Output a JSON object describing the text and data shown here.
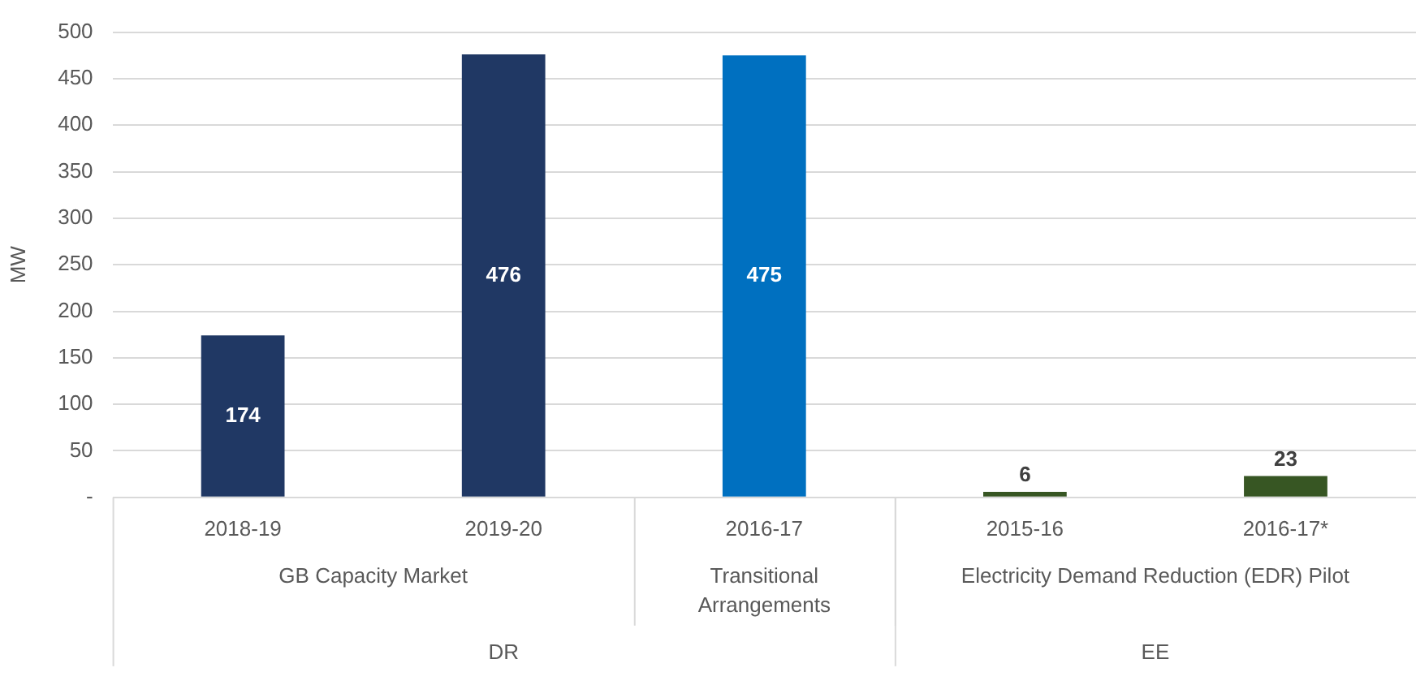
{
  "chart_data": {
    "type": "bar",
    "ylabel": "MW",
    "categories": [
      "2018-19",
      "2019-20",
      "2016-17",
      "2015-16",
      "2016-17*"
    ],
    "values": [
      174,
      476,
      475,
      6,
      23
    ],
    "colors": [
      "#203864",
      "#203864",
      "#0070c0",
      "#375623",
      "#375623"
    ],
    "ylim": [
      0,
      500
    ],
    "yticks": [
      {
        "value": 0,
        "label": "-"
      },
      50,
      100,
      150,
      200,
      250,
      300,
      350,
      400,
      450,
      500
    ],
    "grid": "y",
    "legend": false,
    "data_labels": true,
    "annotations": [
      "GB Capacity Market",
      "Transitional Arrangements",
      "Electricity Demand Reduction (EDR) Pilot",
      "DR",
      "EE"
    ]
  }
}
